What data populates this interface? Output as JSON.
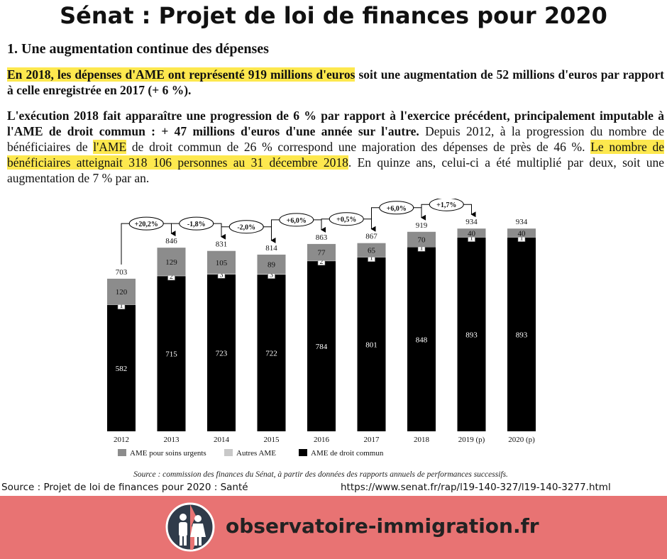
{
  "header": {
    "title": "Sénat : Projet de loi de finances pour 2020"
  },
  "document": {
    "heading": "1. Une augmentation continue des dépenses",
    "paragraphs": [
      {
        "segments": [
          {
            "text": "En 2018, les dépenses d'AME ont représenté 919 millions d'euros",
            "bold": true,
            "highlight": true
          },
          {
            "text": " soit une augmentation de 52 millions d'euros par rapport à celle enregistrée en 2017 (+ 6 %).",
            "bold": true,
            "highlight": false
          }
        ]
      },
      {
        "segments": [
          {
            "text": "L'exécution 2018 fait apparaître une progression de 6 % par rapport à l'exercice précédent, principalement imputable à l'AME de droit commun : + 47 millions d'euros d'une année sur l'autre.",
            "bold": true,
            "highlight": false
          },
          {
            "text": " Depuis 2012, à la progression du nombre de bénéficiaires de ",
            "bold": false,
            "highlight": false
          },
          {
            "text": "l'AME",
            "bold": false,
            "highlight": true
          },
          {
            "text": " de droit commun de 26 % correspond une majoration des dépenses de près de 46 %. ",
            "bold": false,
            "highlight": false
          },
          {
            "text": "Le nombre de bénéficiaires atteignait 318 106 personnes au 31 décembre 2018",
            "bold": false,
            "highlight": true
          },
          {
            "text": ". En quinze ans, celui-ci a été multiplié par deux, soit une augmentation de 7 % par an.",
            "bold": false,
            "highlight": false
          }
        ]
      }
    ]
  },
  "chart_data": {
    "type": "stacked_bar",
    "categories": [
      "2012",
      "2013",
      "2014",
      "2015",
      "2016",
      "2017",
      "2018",
      "2019 (p)",
      "2020 (p)"
    ],
    "series": [
      {
        "name": "AME pour soins urgents",
        "color": "#8c8c8c",
        "values": [
          120,
          129,
          105,
          89,
          77,
          65,
          70,
          40,
          40
        ]
      },
      {
        "name": "Autres AME",
        "color": "#c8c8c8",
        "values": [
          1,
          2,
          3,
          3,
          2,
          1,
          1,
          1,
          1
        ]
      },
      {
        "name": "AME de droit commun",
        "color": "#000000",
        "values": [
          582,
          715,
          723,
          722,
          784,
          801,
          848,
          893,
          893
        ]
      }
    ],
    "totals": [
      703,
      846,
      831,
      814,
      863,
      867,
      919,
      934,
      934
    ],
    "change_labels": [
      "+20,2%",
      "-1,8%",
      "-2,0%",
      "+6,0%",
      "+0,5%",
      "+6,0%",
      "+1,7%"
    ],
    "source": "Source : commission des finances du Sénat, à partir des données des rapports annuels de performances successifs."
  },
  "footer": {
    "source": "Source : Projet de loi de finances pour 2020 : Santé",
    "url": "https://www.senat.fr/rap/l19-140-327/l19-140-3277.html",
    "brand": "observatoire-immigration.fr"
  }
}
